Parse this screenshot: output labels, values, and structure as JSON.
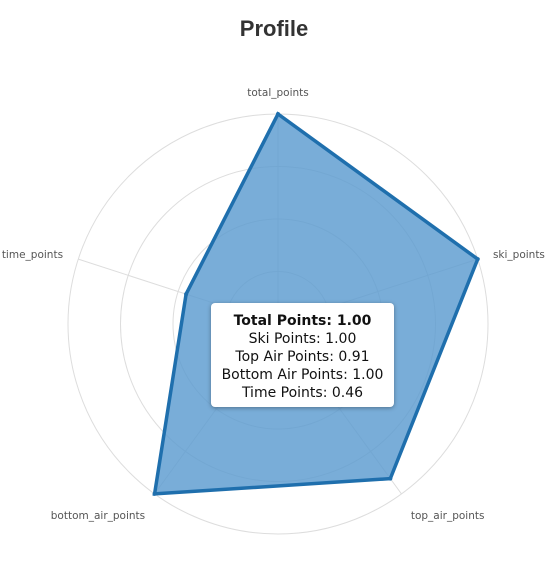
{
  "chart_data": {
    "type": "radar",
    "title": "Profile",
    "axes": [
      "total_points",
      "ski_points",
      "top_air_points",
      "bottom_air_points",
      "time_points"
    ],
    "values": [
      1.0,
      1.0,
      0.91,
      1.0,
      0.46
    ],
    "range": [
      0,
      1
    ],
    "grid": true,
    "grid_rings": 4,
    "colors": {
      "fill": "#5b9bd0",
      "stroke": "#1f6fad",
      "grid": "#dddddd"
    },
    "tooltip": {
      "header": "Total Points: 1.00",
      "lines": [
        "Ski Points: 1.00",
        "Top Air Points: 0.91",
        "Bottom Air Points: 1.00",
        "Time Points: 0.46"
      ]
    }
  }
}
